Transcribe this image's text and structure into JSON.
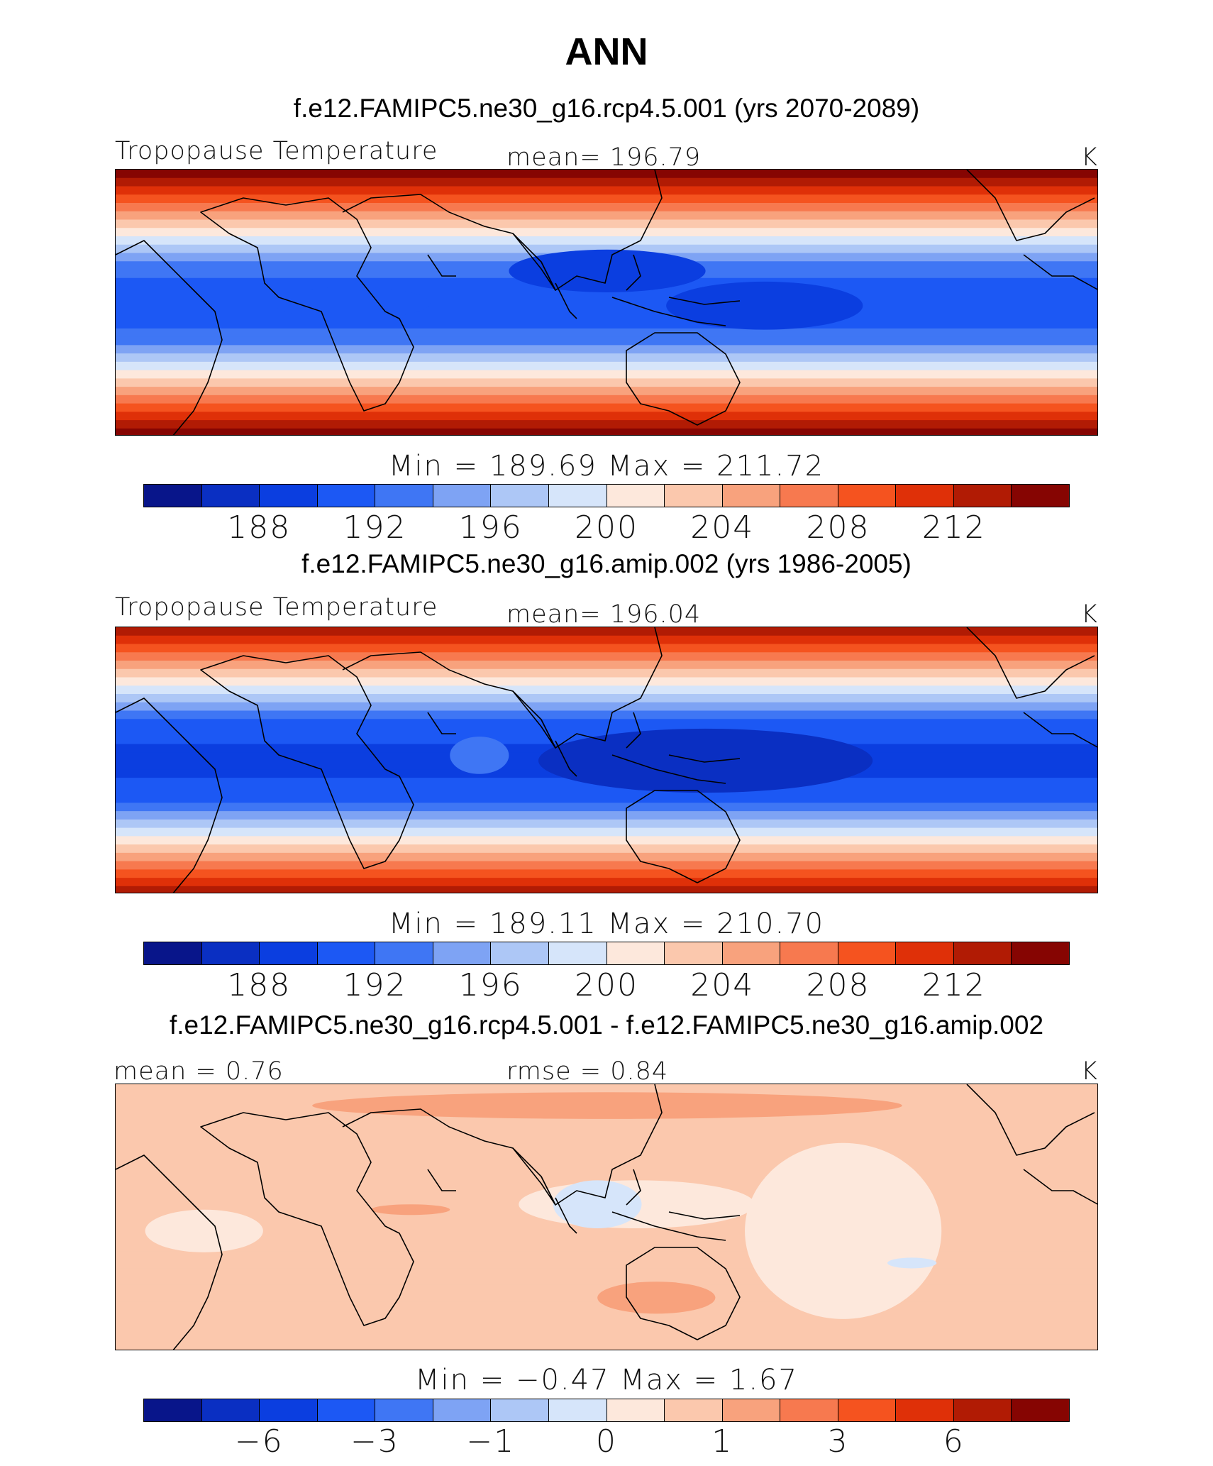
{
  "title": "ANN",
  "colormap": [
    "#08158a",
    "#0a2fc2",
    "#0b3ee0",
    "#1c58f4",
    "#3f76f4",
    "#7ea3f4",
    "#adc7f6",
    "#d6e5fa",
    "#fde8dc",
    "#fbc8ad",
    "#f8a27d",
    "#f7794f",
    "#f5531f",
    "#df3008",
    "#b11b04",
    "#860502"
  ],
  "chart_data": [
    {
      "type": "heatmap",
      "case_title": "f.e12.FAMIPC5.ne30_g16.rcp4.5.001 (yrs 2070-2089)",
      "variable_label": "Tropopause Temperature",
      "mean_text": "mean=  196.79",
      "units": "K",
      "minmax_text": "Min  =  189.69  Max  =  211.72",
      "colorbar_ticks": [
        "188",
        "192",
        "196",
        "200",
        "204",
        "208",
        "212"
      ],
      "colorbar_tick_index": [
        2,
        4,
        6,
        8,
        10,
        12,
        14
      ],
      "min": 189.69,
      "max": 211.72,
      "mean": 196.79,
      "zero_color_index": 8,
      "bands_pole_to_equator": [
        15,
        14,
        13,
        12,
        11,
        10,
        9,
        8,
        7,
        6,
        5,
        4,
        4,
        3,
        3,
        3
      ],
      "blobs": [
        {
          "name": "cold-pool-pacific",
          "color_index": 2,
          "cx": 0.66,
          "cy": 0.51,
          "rx": 0.1,
          "ry": 0.09
        },
        {
          "name": "cold-pool-atlantic",
          "color_index": 3,
          "cx": 0.24,
          "cy": 0.5,
          "rx": 0.08,
          "ry": 0.06
        },
        {
          "name": "cold-pool-indian",
          "color_index": 2,
          "cx": 0.5,
          "cy": 0.38,
          "rx": 0.1,
          "ry": 0.08
        }
      ]
    },
    {
      "type": "heatmap",
      "case_title": "f.e12.FAMIPC5.ne30_g16.amip.002 (yrs 1986-2005)",
      "variable_label": "Tropopause Temperature",
      "mean_text": "mean=  196.04",
      "units": "K",
      "minmax_text": "Min  =  189.11  Max  =  210.70",
      "colorbar_ticks": [
        "188",
        "192",
        "196",
        "200",
        "204",
        "208",
        "212"
      ],
      "colorbar_tick_index": [
        2,
        4,
        6,
        8,
        10,
        12,
        14
      ],
      "min": 189.11,
      "max": 210.7,
      "mean": 196.04,
      "zero_color_index": 8,
      "bands_pole_to_equator": [
        14,
        13,
        12,
        11,
        10,
        9,
        8,
        7,
        6,
        5,
        4,
        3,
        3,
        3,
        2,
        2
      ],
      "blobs": [
        {
          "name": "cold-pool-pacific",
          "color_index": 1,
          "cx": 0.6,
          "cy": 0.5,
          "rx": 0.17,
          "ry": 0.12
        },
        {
          "name": "warm-spot-indian",
          "color_index": 4,
          "cx": 0.37,
          "cy": 0.48,
          "rx": 0.03,
          "ry": 0.07
        }
      ]
    },
    {
      "type": "heatmap",
      "case_title": "f.e12.FAMIPC5.ne30_g16.rcp4.5.001 - f.e12.FAMIPC5.ne30_g16.amip.002",
      "variable_label": "mean =    0.76",
      "mean_text": "rmse =    0.84",
      "units": "K",
      "minmax_text": "Min  =    −0.47  Max  =    1.67",
      "colorbar_ticks": [
        "−6",
        "−3",
        "−1",
        "0",
        "1",
        "3",
        "6"
      ],
      "colorbar_tick_index": [
        2,
        4,
        6,
        8,
        10,
        12,
        14
      ],
      "min": -0.47,
      "max": 1.67,
      "mean": 0.76,
      "rmse": 0.84,
      "zero_color_index": 8,
      "bands_pole_to_equator": [
        9,
        9,
        9,
        9,
        9,
        9,
        9,
        9,
        9,
        9,
        9,
        9,
        9,
        9,
        9,
        9
      ],
      "blobs": [
        {
          "name": "weak-warming-pacific",
          "color_index": 8,
          "cx": 0.74,
          "cy": 0.55,
          "rx": 0.1,
          "ry": 0.33
        },
        {
          "name": "weak-warming-indian",
          "color_index": 8,
          "cx": 0.53,
          "cy": 0.45,
          "rx": 0.12,
          "ry": 0.09
        },
        {
          "name": "weak-warming-atlantic",
          "color_index": 8,
          "cx": 0.09,
          "cy": 0.55,
          "rx": 0.06,
          "ry": 0.08
        },
        {
          "name": "cooling-maritime",
          "color_index": 7,
          "cx": 0.49,
          "cy": 0.45,
          "rx": 0.045,
          "ry": 0.09
        },
        {
          "name": "cooling-pacific",
          "color_index": 7,
          "cx": 0.81,
          "cy": 0.67,
          "rx": 0.025,
          "ry": 0.02
        },
        {
          "name": "stronger-warming-nh",
          "color_index": 10,
          "cx": 0.5,
          "cy": 0.08,
          "rx": 0.3,
          "ry": 0.05
        },
        {
          "name": "stronger-warming-africa",
          "color_index": 10,
          "cx": 0.3,
          "cy": 0.47,
          "rx": 0.04,
          "ry": 0.02
        },
        {
          "name": "stronger-warming-sh",
          "color_index": 10,
          "cx": 0.55,
          "cy": 0.8,
          "rx": 0.06,
          "ry": 0.06
        }
      ]
    }
  ]
}
